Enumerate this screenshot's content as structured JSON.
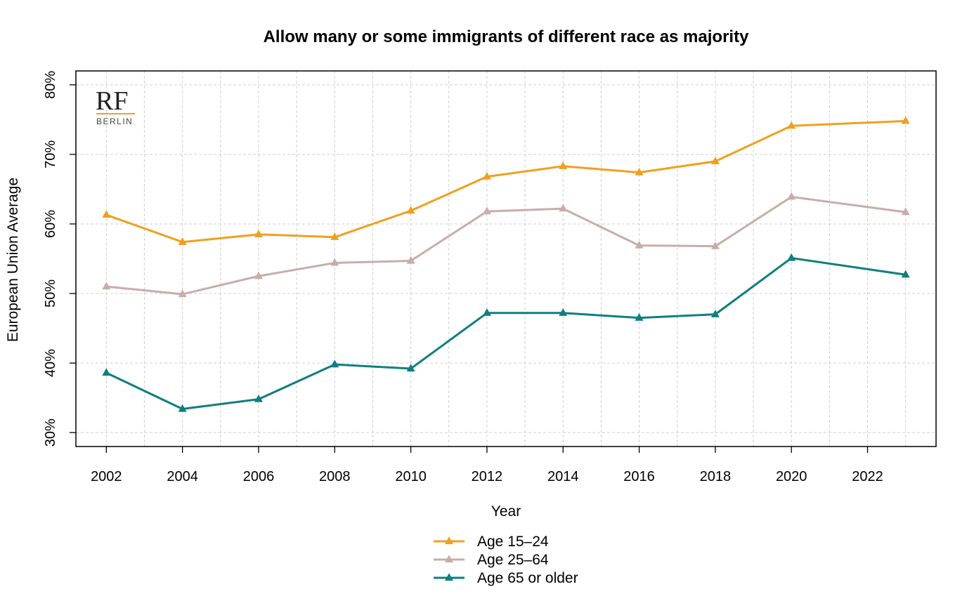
{
  "chart_data": {
    "type": "line",
    "title": "Allow many or some immigrants of different race as majority",
    "xlabel": "Year",
    "ylabel": "European Union Average",
    "x": [
      2002,
      2004,
      2006,
      2008,
      2010,
      2012,
      2014,
      2016,
      2018,
      2020,
      2023
    ],
    "xlim": [
      2001.2,
      2023.8
    ],
    "ylim": [
      28,
      82
    ],
    "x_ticks": [
      2002,
      2004,
      2006,
      2008,
      2010,
      2012,
      2014,
      2016,
      2018,
      2020,
      2022
    ],
    "x_tick_labels": [
      "2002",
      "2004",
      "2006",
      "2008",
      "2010",
      "2012",
      "2014",
      "2016",
      "2018",
      "2020",
      "2022"
    ],
    "y_ticks": [
      30,
      40,
      50,
      60,
      70,
      80
    ],
    "y_tick_labels": [
      "30%",
      "40%",
      "50%",
      "60%",
      "70%",
      "80%"
    ],
    "grid": true,
    "legend_position": "bottom",
    "series": [
      {
        "name": "Age 15–24",
        "color": "#F0A01E",
        "values": [
          61.3,
          57.4,
          58.5,
          58.1,
          61.9,
          66.8,
          68.3,
          67.4,
          69.0,
          74.1,
          74.8
        ]
      },
      {
        "name": "Age 25–64",
        "color": "#C8ADA8",
        "values": [
          51.0,
          49.9,
          52.5,
          54.4,
          54.7,
          61.8,
          62.2,
          56.9,
          56.8,
          63.9,
          61.7
        ]
      },
      {
        "name": "Age 65 or older",
        "color": "#0E7F7F",
        "values": [
          38.6,
          33.4,
          34.8,
          39.8,
          39.2,
          47.2,
          47.2,
          46.5,
          47.0,
          55.1,
          52.7
        ]
      }
    ]
  },
  "logo": {
    "main": "RF",
    "sub": "BERLIN",
    "accent": "#F0A01E"
  }
}
